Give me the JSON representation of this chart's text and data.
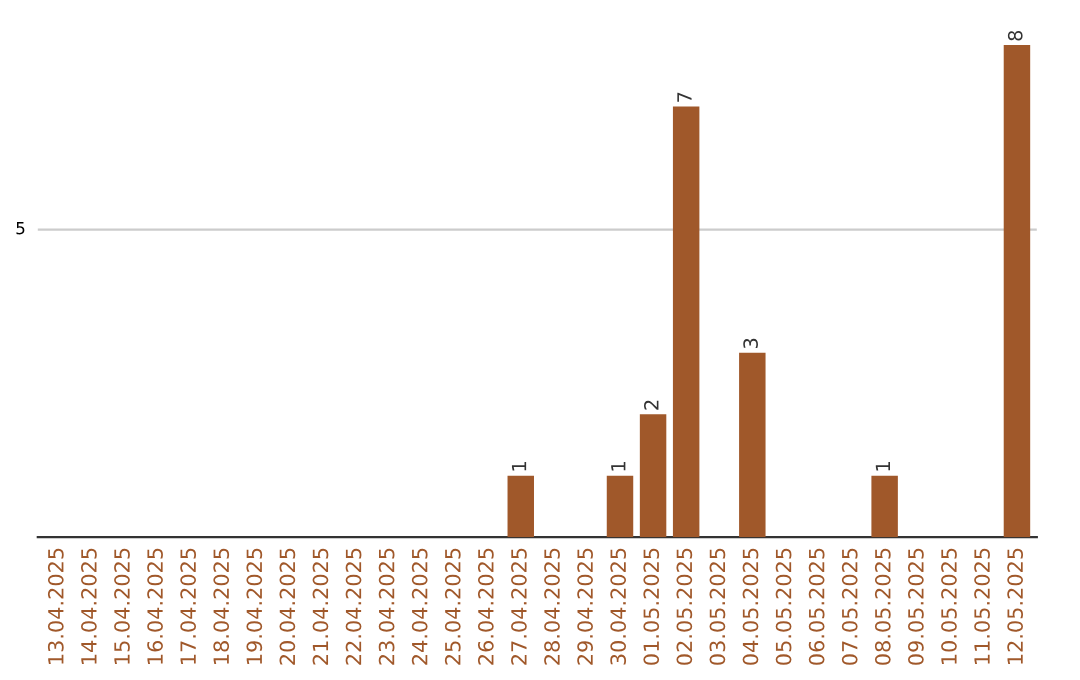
{
  "chart_data": {
    "type": "bar",
    "categories": [
      "13.04.2025",
      "14.04.2025",
      "15.04.2025",
      "16.04.2025",
      "17.04.2025",
      "18.04.2025",
      "19.04.2025",
      "20.04.2025",
      "21.04.2025",
      "22.04.2025",
      "23.04.2025",
      "24.04.2025",
      "25.04.2025",
      "26.04.2025",
      "27.04.2025",
      "28.04.2025",
      "29.04.2025",
      "30.04.2025",
      "01.05.2025",
      "02.05.2025",
      "03.05.2025",
      "04.05.2025",
      "05.05.2025",
      "06.05.2025",
      "07.05.2025",
      "08.05.2025",
      "09.05.2025",
      "10.05.2025",
      "11.05.2025",
      "12.05.2025"
    ],
    "values": [
      null,
      null,
      null,
      null,
      null,
      null,
      null,
      null,
      null,
      null,
      null,
      null,
      null,
      null,
      1,
      null,
      null,
      1,
      2,
      7,
      null,
      3,
      null,
      null,
      null,
      1,
      null,
      null,
      null,
      8
    ],
    "color": "#a0582a",
    "ref_lines": [
      {
        "axis": "y",
        "value": 5,
        "label": "5",
        "color": "#cccccc"
      }
    ],
    "data_labels": true
  }
}
